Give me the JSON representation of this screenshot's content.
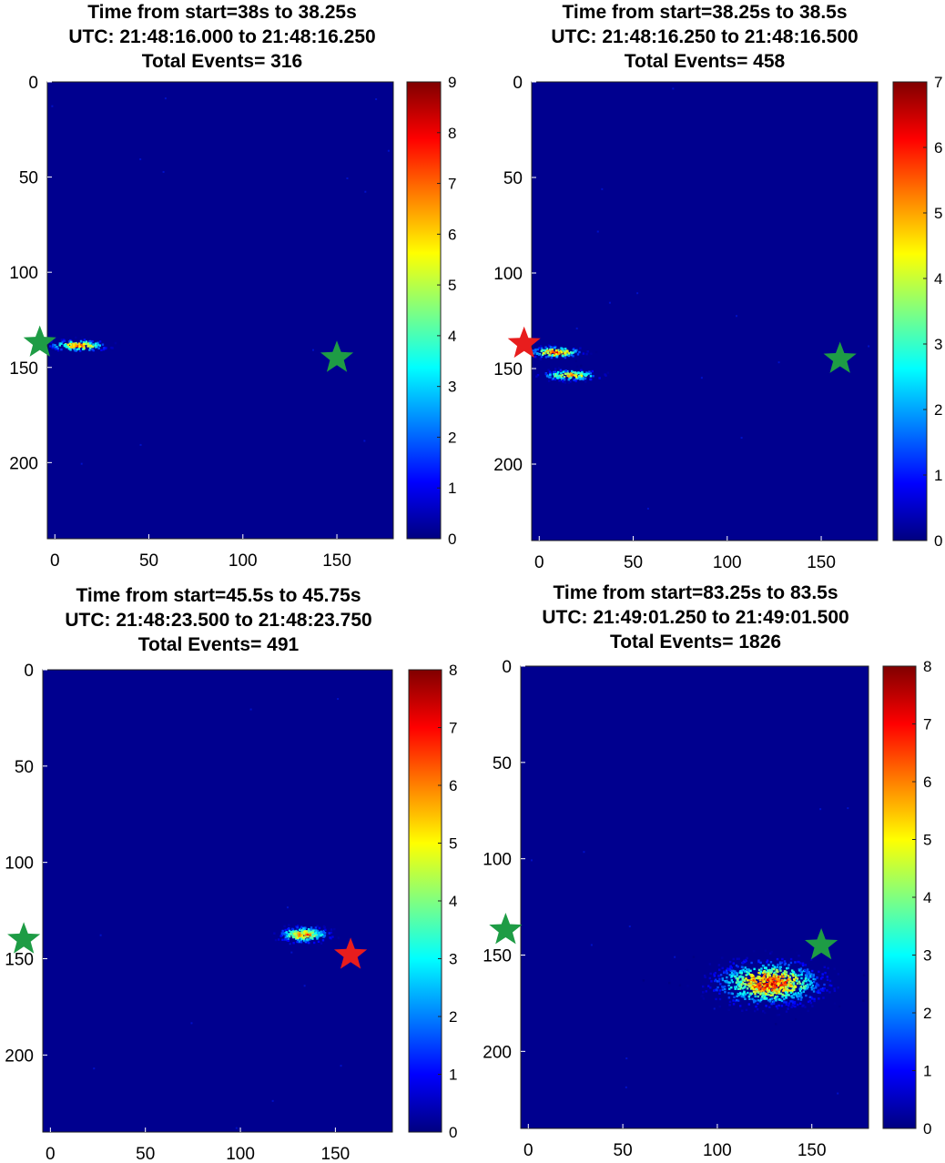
{
  "chart_data": [
    {
      "type": "heatmap",
      "title": [
        "Time from start=38s to 38.25s",
        "UTC: 21:48:16.000 to 21:48:16.250",
        "Total Events= 316"
      ],
      "xlim": [
        -4,
        180
      ],
      "ylim": [
        0,
        240
      ],
      "xticks": [
        0,
        50,
        100,
        150
      ],
      "yticks": [
        0,
        50,
        100,
        150,
        200
      ],
      "colorbar": {
        "min": 0,
        "max": 9,
        "ticks": [
          0,
          1,
          2,
          3,
          4,
          5,
          6,
          7,
          8,
          9
        ],
        "colormap": "jet"
      },
      "background_color": "#00008f",
      "blobs": [
        {
          "x": 12,
          "y": 138,
          "sx": 8,
          "sy": 1.6,
          "peak": 8,
          "count": 150
        }
      ],
      "stars": [
        {
          "x": -8,
          "y": 137,
          "color": "#1e9c45"
        },
        {
          "x": 150,
          "y": 145,
          "color": "#1e9c45"
        }
      ]
    },
    {
      "type": "heatmap",
      "title": [
        "Time from start=38.25s to 38.5s",
        "UTC: 21:48:16.250 to 21:48:16.500",
        "Total Events= 458"
      ],
      "xlim": [
        -4,
        180
      ],
      "ylim": [
        0,
        240
      ],
      "xticks": [
        0,
        50,
        100,
        150
      ],
      "yticks": [
        0,
        50,
        100,
        150,
        200
      ],
      "colorbar": {
        "min": 0,
        "max": 7,
        "ticks": [
          0,
          1,
          2,
          3,
          4,
          5,
          6,
          7
        ],
        "colormap": "jet"
      },
      "background_color": "#00008f",
      "blobs": [
        {
          "x": 8,
          "y": 141,
          "sx": 7,
          "sy": 1.6,
          "peak": 7,
          "count": 130
        },
        {
          "x": 16,
          "y": 153,
          "sx": 8,
          "sy": 1.5,
          "peak": 6,
          "count": 140
        }
      ],
      "stars": [
        {
          "x": -8,
          "y": 137,
          "color": "#e81d1d"
        },
        {
          "x": 160,
          "y": 145,
          "color": "#1e9c45"
        }
      ]
    },
    {
      "type": "heatmap",
      "title": [
        "Time from start=45.5s to 45.75s",
        "UTC: 21:48:23.500 to 21:48:23.750",
        "Total Events= 491"
      ],
      "xlim": [
        -4,
        180
      ],
      "ylim": [
        0,
        240
      ],
      "xticks": [
        0,
        50,
        100,
        150
      ],
      "yticks": [
        0,
        50,
        100,
        150,
        200
      ],
      "colorbar": {
        "min": 0,
        "max": 8,
        "ticks": [
          0,
          1,
          2,
          3,
          4,
          5,
          6,
          7,
          8
        ],
        "colormap": "jet"
      },
      "background_color": "#00008f",
      "blobs": [
        {
          "x": 133,
          "y": 137,
          "sx": 7,
          "sy": 2.2,
          "peak": 7,
          "count": 260
        }
      ],
      "stars": [
        {
          "x": -14,
          "y": 140,
          "color": "#1e9c45"
        },
        {
          "x": 158,
          "y": 148,
          "color": "#e81d1d"
        }
      ]
    },
    {
      "type": "heatmap",
      "title": [
        "Time from start=83.25s to 83.5s",
        "UTC: 21:49:01.250 to 21:49:01.500",
        "Total Events= 1826"
      ],
      "xlim": [
        -4,
        180
      ],
      "ylim": [
        0,
        240
      ],
      "xticks": [
        0,
        50,
        100,
        150
      ],
      "yticks": [
        0,
        50,
        100,
        150,
        200
      ],
      "colorbar": {
        "min": 0,
        "max": 8,
        "ticks": [
          0,
          1,
          2,
          3,
          4,
          5,
          6,
          7,
          8
        ],
        "colormap": "jet"
      },
      "background_color": "#00008f",
      "blobs": [
        {
          "x": 127,
          "y": 164,
          "sx": 15,
          "sy": 6,
          "peak": 8,
          "count": 900
        }
      ],
      "stars": [
        {
          "x": -12,
          "y": 137,
          "color": "#1e9c45"
        },
        {
          "x": 155,
          "y": 145,
          "color": "#1e9c45"
        }
      ]
    }
  ]
}
